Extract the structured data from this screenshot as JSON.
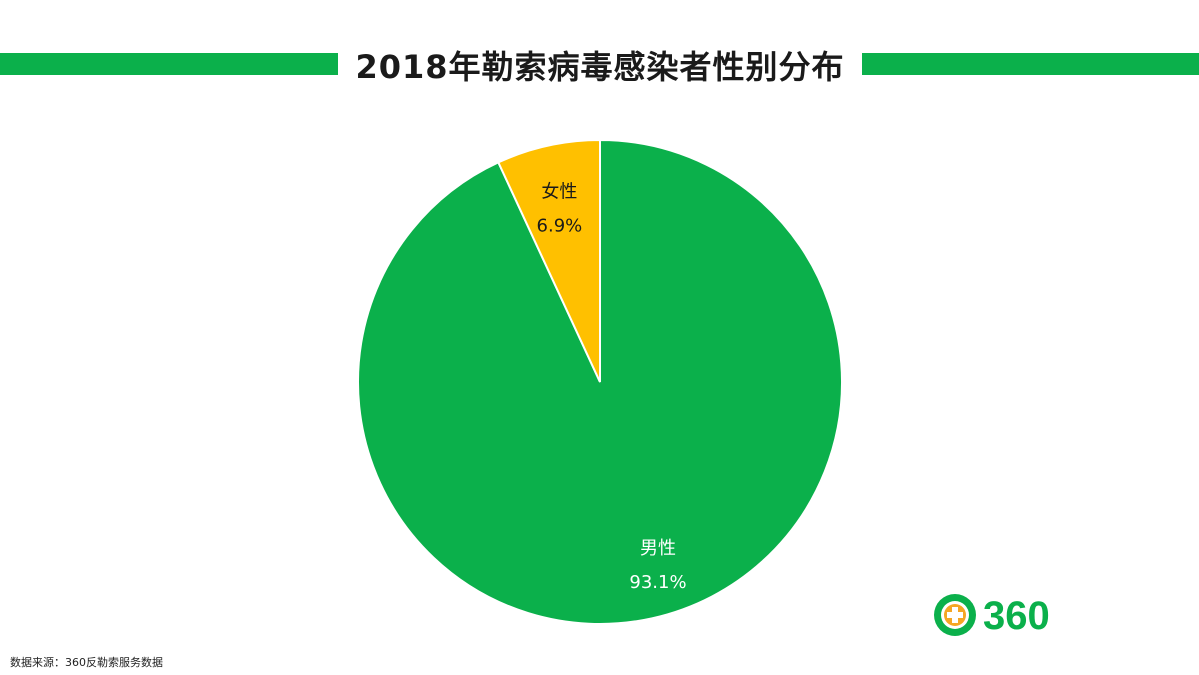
{
  "title": "2018年勒索病毒感染者性别分布",
  "source": "数据来源：360反勒索服务数据",
  "logo_text": "360",
  "colors": {
    "brand": "#0bb04b",
    "male": "#0bb04b",
    "female": "#ffc000",
    "logo_orange": "#f5a623"
  },
  "chart_data": {
    "type": "pie",
    "categories": [
      "男性",
      "女性"
    ],
    "values": [
      93.1,
      6.9
    ],
    "value_labels": [
      "93.1%",
      "6.9%"
    ],
    "colors": [
      "#0bb04b",
      "#ffc000"
    ],
    "start": "12 o'clock",
    "direction": "clockwise",
    "legend": "none"
  }
}
